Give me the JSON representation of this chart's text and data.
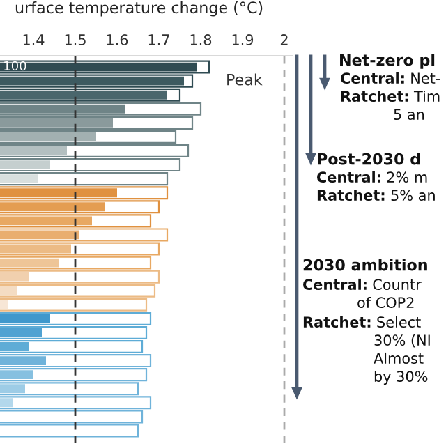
{
  "chart_data": {
    "type": "bar",
    "orientation": "horizontal",
    "xlabel": "urface temperature change (°C)",
    "categories": [
      null,
      null,
      null,
      null,
      null,
      null,
      null,
      null,
      null,
      null,
      null,
      null,
      null,
      null,
      null,
      null,
      null,
      null,
      null,
      null,
      null,
      null,
      null,
      null,
      null,
      null,
      null
    ],
    "series": [
      {
        "name": "100",
        "values": [
          1.79,
          1.76,
          1.72,
          1.62,
          1.59,
          1.55,
          1.48,
          1.44,
          1.41,
          1.6,
          1.57,
          1.54,
          1.51,
          1.49,
          1.46,
          1.39,
          1.36,
          1.34,
          1.44,
          1.42,
          1.39,
          1.43,
          1.4,
          1.38,
          1.35,
          null,
          null
        ],
        "colors": [
          "#2f4b52",
          "#3d5a60",
          "#4a666c",
          "#6f8487",
          "#8a9a9c",
          "#a2b0b1",
          "#b3bfc0",
          "#c5cfcf",
          "#d8dfde",
          "#e0913f",
          "#e49d52",
          "#e8a862",
          "#e9ae70",
          "#ecbb85",
          "#eec597",
          "#f1d0ae",
          "#f4dcc3",
          "#f7e6d6",
          "#3f98cc",
          "#4fa2d2",
          "#5eacd6",
          "#6fb3da",
          "#86c0e0",
          "#9dcce6",
          "#b3d8ec",
          "#c5e1f0",
          "#d6eaf4"
        ]
      },
      {
        "name": "Peak",
        "values": [
          1.82,
          1.78,
          1.75,
          1.8,
          1.78,
          1.74,
          1.77,
          1.75,
          1.72,
          1.72,
          1.7,
          1.68,
          1.72,
          1.7,
          1.68,
          1.7,
          1.69,
          1.67,
          1.68,
          1.67,
          1.66,
          1.68,
          1.67,
          1.65,
          1.68,
          1.66,
          1.65
        ],
        "colors": [
          "#2f4b52",
          "#2f4b52",
          "#2f4b52",
          "#6f8487",
          "#6f8487",
          "#6f8487",
          "#6f8487",
          "#6f8487",
          "#6f8487",
          "#e0913f",
          "#e0913f",
          "#e0913f",
          "#e8a862",
          "#e8a862",
          "#e8a862",
          "#ecbb85",
          "#ecbb85",
          "#ecbb85",
          "#5eacd6",
          "#5eacd6",
          "#5eacd6",
          "#6fb3da",
          "#6fb3da",
          "#6fb3da",
          "#6fb3da",
          "#6fb3da",
          "#6fb3da"
        ]
      }
    ],
    "xlim": [
      1.32,
      2.02
    ],
    "xticks": [
      1.4,
      1.5,
      1.6,
      1.7,
      1.8,
      1.9,
      2
    ],
    "tick_labels": "x",
    "grid": false,
    "legend": false,
    "ref_lines": [
      {
        "axis": "x",
        "value": 1.5,
        "color": "#333333",
        "line_style": "dashed"
      },
      {
        "axis": "x",
        "value": 2,
        "color": "#aaaaaa",
        "line_style": "dashed"
      }
    ],
    "annotations": [
      "Net-zero pl",
      "Central:",
      "Net-",
      "Ratchet:",
      "Tim",
      "5 an",
      "Post-2030 d",
      "Central:",
      "2% m",
      "Ratchet:",
      "5% an",
      "2030 ambition",
      "Central:",
      "Countr",
      "of COP2",
      "Ratchet:",
      "Select",
      "30% (NI",
      "Almost",
      "by 30%"
    ]
  }
}
